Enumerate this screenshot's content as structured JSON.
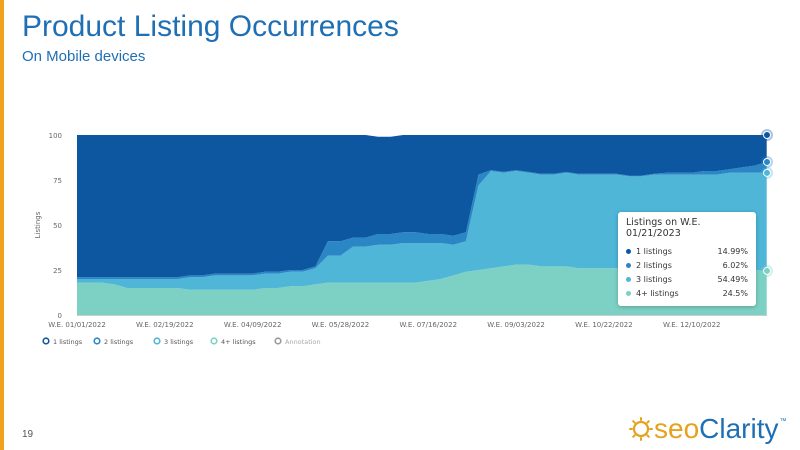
{
  "slide": {
    "title": "Product Listing Occurrences",
    "subtitle": "On Mobile devices",
    "page_number": "19",
    "accent_color": "#f0a31c"
  },
  "logo": {
    "seo": "seo",
    "clarity": "Clarity",
    "tm": "™",
    "icon": "sun-gear-icon"
  },
  "legend": {
    "items": [
      "1 listings",
      "2 listings",
      "3 listings",
      "4+ listings",
      "Annotation"
    ]
  },
  "tooltip": {
    "title": "Listings on W.E. 01/21/2023",
    "rows": [
      {
        "name": "1 listings",
        "value": "14.99%",
        "color": "#0d56a0"
      },
      {
        "name": "2 listings",
        "value": "6.02%",
        "color": "#2b86c6"
      },
      {
        "name": "3 listings",
        "value": "54.49%",
        "color": "#4fb6d8"
      },
      {
        "name": "4+ listings",
        "value": "24.5%",
        "color": "#7dd1c4"
      }
    ]
  },
  "chart_data": {
    "type": "area",
    "stacked": true,
    "title": "",
    "xlabel": "",
    "ylabel": "Listings",
    "ylim": [
      0,
      100
    ],
    "yticks": [
      0,
      25,
      50,
      75,
      100
    ],
    "xtick_labels": [
      "W.E. 01/01/2022",
      "W.E. 02/19/2022",
      "W.E. 04/09/2022",
      "W.E. 05/28/2022",
      "W.E. 07/16/2022",
      "W.E. 09/03/2022",
      "W.E. 10/22/2022",
      "W.E. 12/10/2022"
    ],
    "xtick_positions": [
      0,
      7,
      14,
      21,
      28,
      35,
      42,
      49
    ],
    "x_count": 56,
    "x_start": "W.E. 01/01/2022",
    "x_end": "W.E. 01/21/2023",
    "legend_position": "bottom-left",
    "grid": false,
    "series": [
      {
        "name": "4+ listings",
        "color": "#7dd1c4",
        "values": [
          18,
          18,
          18,
          17,
          15,
          15,
          15,
          15,
          15,
          14,
          14,
          14,
          14,
          14,
          14,
          15,
          15,
          16,
          16,
          17,
          18,
          18,
          18,
          18,
          18,
          18,
          18,
          18,
          19,
          20,
          22,
          24,
          25,
          26,
          27,
          28,
          28,
          27,
          27,
          27,
          26,
          26,
          26,
          26,
          25,
          25,
          25,
          25,
          25,
          25,
          25,
          25,
          25,
          25,
          25,
          24.5
        ]
      },
      {
        "name": "3 listings",
        "color": "#4fb6d8",
        "values": [
          2,
          2,
          2,
          3,
          5,
          5,
          5,
          5,
          5,
          7,
          7,
          8,
          8,
          8,
          8,
          8,
          8,
          8,
          8,
          9,
          15,
          15,
          20,
          20,
          21,
          21,
          22,
          22,
          21,
          20,
          17,
          17,
          47,
          54,
          52,
          52,
          51,
          51,
          51,
          52,
          52,
          52,
          52,
          52,
          52,
          52,
          53,
          53,
          53,
          53,
          53,
          53,
          54,
          54,
          54,
          54.49
        ]
      },
      {
        "name": "2 listings",
        "color": "#2b86c6",
        "values": [
          1,
          1,
          1,
          1,
          1,
          1,
          1,
          1,
          1,
          1,
          1,
          1,
          1,
          1,
          1,
          1,
          1,
          1,
          1,
          1,
          8,
          8,
          5,
          5,
          6,
          6,
          6,
          6,
          5,
          5,
          5,
          5,
          6,
          0.5,
          0.5,
          0.5,
          0.5,
          0.5,
          0.5,
          0.5,
          0.5,
          0.5,
          0.5,
          0.5,
          0.5,
          0.5,
          0.5,
          1,
          1,
          1,
          2,
          2,
          2,
          3,
          4,
          6.02
        ]
      },
      {
        "name": "1 listings",
        "color": "#0d56a0",
        "values": [
          79,
          79,
          79,
          79,
          79,
          79,
          79,
          79,
          79,
          78,
          78,
          77,
          77,
          77,
          77,
          76,
          76,
          75,
          75,
          74,
          59,
          59,
          57,
          57,
          54,
          54,
          54,
          54,
          55,
          55,
          56,
          54,
          22,
          19.5,
          20.5,
          19.5,
          20.5,
          21.5,
          21.5,
          20.5,
          21.5,
          21.5,
          21.5,
          21.5,
          22.5,
          22.5,
          21.5,
          21,
          21,
          21,
          20,
          20,
          19,
          18,
          17,
          14.99
        ]
      }
    ]
  }
}
